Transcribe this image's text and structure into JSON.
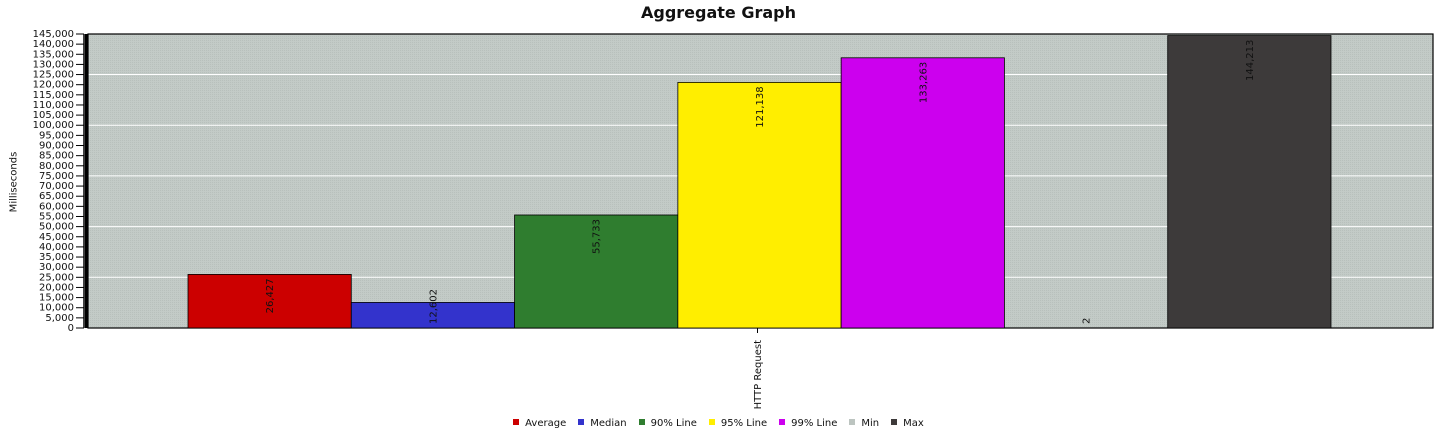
{
  "chart_data": {
    "type": "bar",
    "title": "Aggregate Graph",
    "ylabel": "Milliseconds",
    "xlabel": "",
    "categories": [
      "HTTP Request"
    ],
    "ylim": [
      0,
      145000
    ],
    "grid": true,
    "legend_position": "bottom",
    "series": [
      {
        "name": "Average",
        "values": [
          26427
        ],
        "label": "26,427",
        "color": "#cc0000"
      },
      {
        "name": "Median",
        "values": [
          12602
        ],
        "label": "12,602",
        "color": "#3333cc"
      },
      {
        "name": "90% Line",
        "values": [
          55733
        ],
        "label": "55,733",
        "color": "#2f7d2f"
      },
      {
        "name": "95% Line",
        "values": [
          121138
        ],
        "label": "121,138",
        "color": "#ffee00"
      },
      {
        "name": "99% Line",
        "values": [
          133263
        ],
        "label": "133,263",
        "color": "#cc00ee"
      },
      {
        "name": "Min",
        "values": [
          2
        ],
        "label": "2",
        "color": "#bcc4c0"
      },
      {
        "name": "Max",
        "values": [
          144213
        ],
        "label": "144,213",
        "color": "#3d3a3a"
      }
    ],
    "plot_background": "#c0c8c4"
  }
}
